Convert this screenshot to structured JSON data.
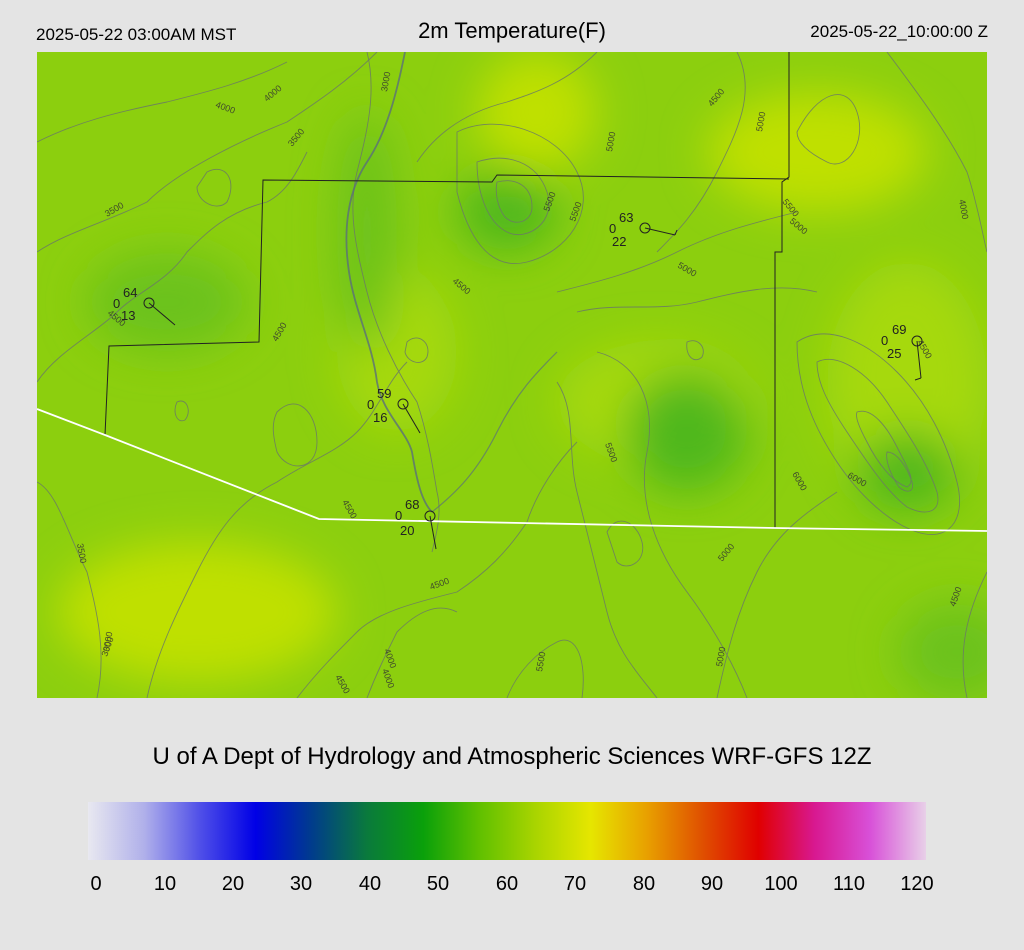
{
  "header": {
    "local_time": "2025-05-22 03:00AM MST",
    "title": "2m Temperature(F)",
    "utc_time": "2025-05-22_10:00:00 Z"
  },
  "credit": "U of A Dept of Hydrology and Atmospheric Sciences WRF-GFS 12Z",
  "colorbar": {
    "ticks": [
      "0",
      "10",
      "20",
      "30",
      "40",
      "50",
      "60",
      "70",
      "80",
      "90",
      "100",
      "110",
      "120"
    ],
    "colors": [
      "#e8e8f0",
      "#b0b0ea",
      "#5050e8",
      "#0000e6",
      "#003c8c",
      "#0a7a3c",
      "#0aa00a",
      "#60c000",
      "#a8d400",
      "#e6e600",
      "#e8a000",
      "#e05000",
      "#e00000",
      "#d81890",
      "#d850d8",
      "#e8d0e8"
    ]
  },
  "map": {
    "field_colors": [
      "#6cc21a",
      "#8ccf0e",
      "#a6d90a",
      "#bfe000",
      "#4fb81c"
    ],
    "contour_labels": [
      "3000",
      "3500",
      "4000",
      "4500",
      "5000",
      "5500",
      "6000",
      "3000",
      "3500",
      "4000",
      "4500",
      "4500",
      "5000",
      "5500",
      "5000",
      "4500",
      "5000",
      "5500",
      "6000",
      "5500",
      "4500",
      "4000",
      "5000",
      "3500",
      "3000",
      "4000",
      "4500",
      "4500",
      "5500",
      "5000",
      "4500",
      "4000",
      "4500"
    ],
    "stations": [
      {
        "temp": "64",
        "precip": "0",
        "dewpt": "13"
      },
      {
        "temp": "63",
        "precip": "0",
        "dewpt": "22"
      },
      {
        "temp": "69",
        "precip": "0",
        "dewpt": "25"
      },
      {
        "temp": "59",
        "precip": "0",
        "dewpt": "16"
      },
      {
        "temp": "68",
        "precip": "0",
        "dewpt": "20"
      }
    ]
  }
}
